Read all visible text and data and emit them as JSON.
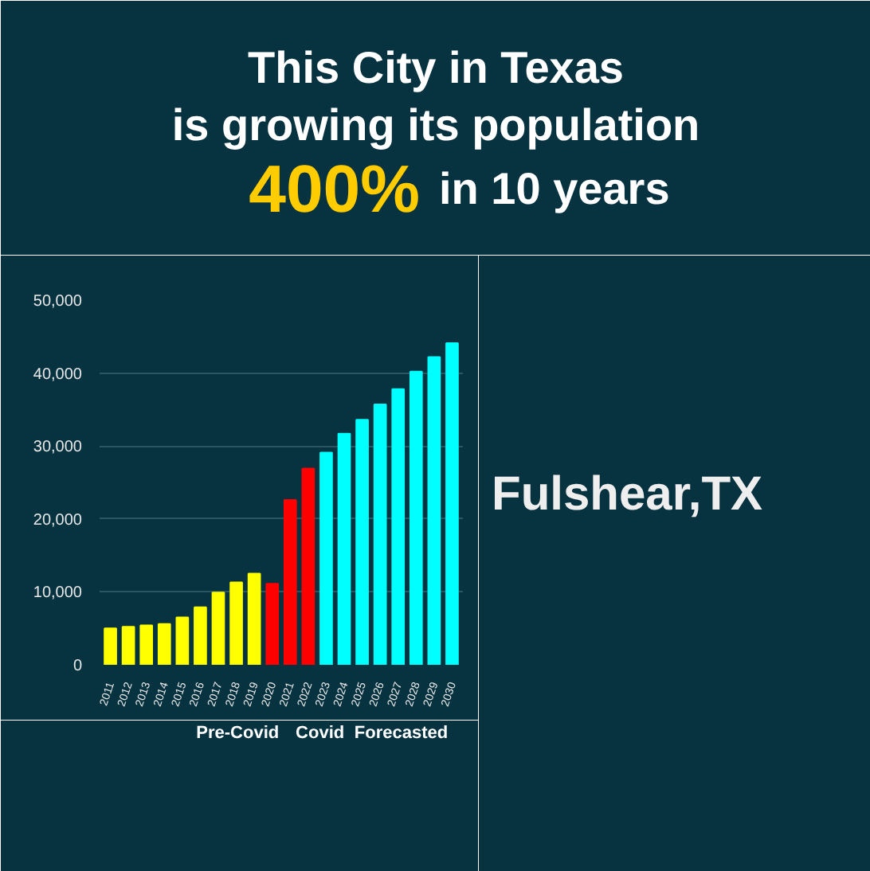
{
  "chart_data": {
    "type": "bar",
    "title": "This City in Texas\nis growing its population",
    "subtitle": "400% in 10 years",
    "categories": [
      "2011",
      "2012",
      "2013",
      "2014",
      "2015",
      "2016",
      "2017",
      "2018",
      "2019",
      "2020",
      "2021",
      "2022",
      "2023",
      "2024",
      "2025",
      "2026",
      "2027",
      "2028",
      "2029",
      "2030"
    ],
    "values": [
      5000,
      5200,
      5400,
      5600,
      6500,
      7900,
      9900,
      11300,
      12500,
      11100,
      22600,
      26900,
      29100,
      31700,
      33600,
      35700,
      37800,
      40200,
      42200,
      44100
    ],
    "colors": [
      "#ffff00",
      "#ffff00",
      "#ffff00",
      "#ffff00",
      "#ffff00",
      "#ffff00",
      "#ffff00",
      "#ffff00",
      "#ffff00",
      "#ff0000",
      "#ff0000",
      "#ff0000",
      "#00ffff",
      "#00ffff",
      "#00ffff",
      "#00ffff",
      "#00ffff",
      "#00ffff",
      "#00ffff",
      "#00ffff"
    ],
    "ylim": [
      0,
      50000
    ],
    "yticks": [
      {
        "value": 0,
        "label": "0"
      },
      {
        "value": 10000,
        "label": "10,000"
      },
      {
        "value": 20000,
        "label": "20,000"
      },
      {
        "value": 30000,
        "label": "30,000"
      },
      {
        "value": 40000,
        "label": "40,000"
      },
      {
        "value": 50000,
        "label": "50,000"
      }
    ],
    "grid": "y",
    "annotations": [
      "Pre-Covid",
      "Covid",
      "Forecasted",
      "Fulshear,TX"
    ]
  }
}
